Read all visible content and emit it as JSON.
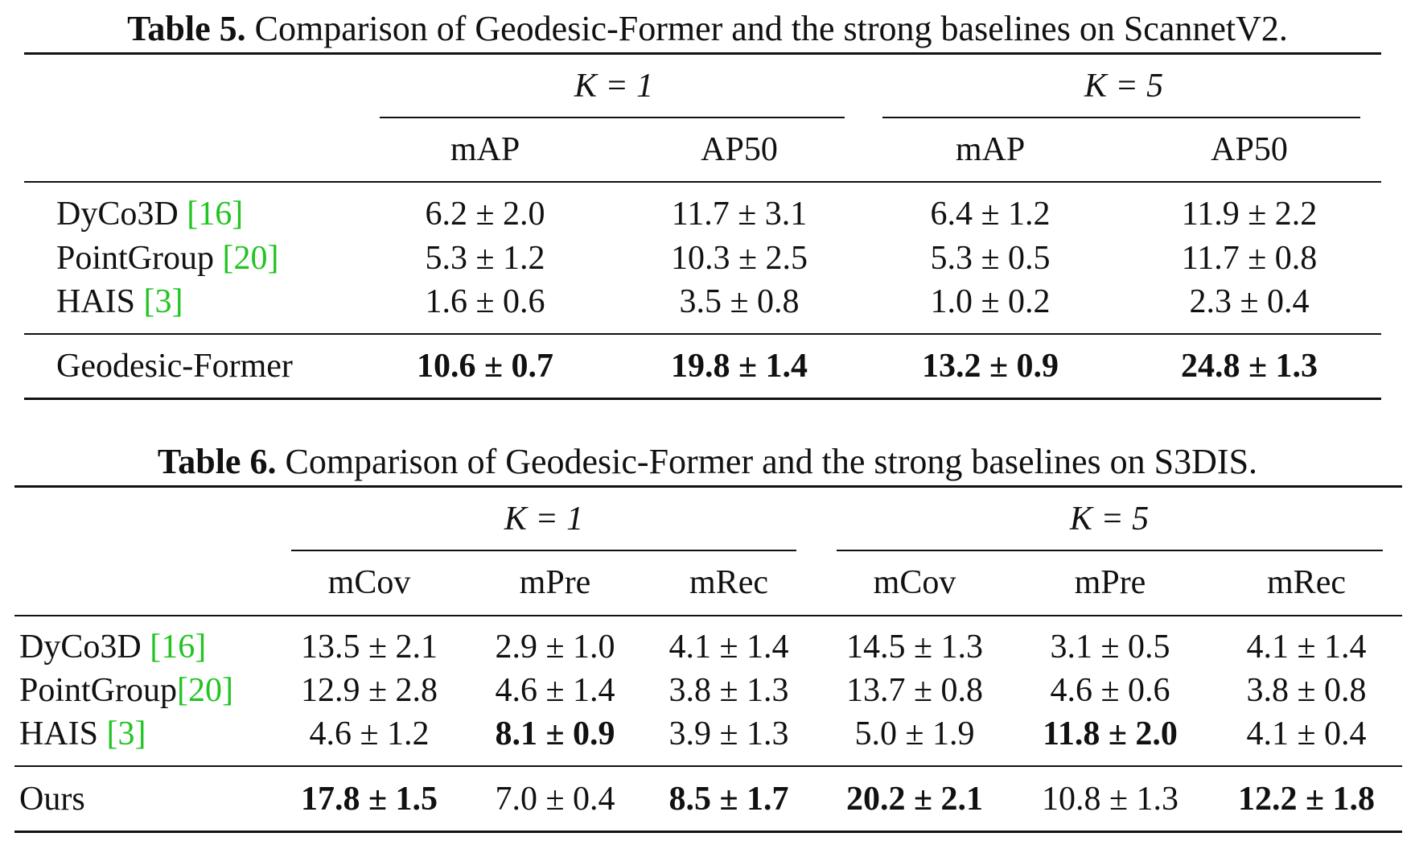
{
  "table5": {
    "label": "Table 5.",
    "caption": "Comparison of Geodesic-Former and the strong baselines on ScannetV2.",
    "group_headers": [
      "K = 1",
      "K = 5"
    ],
    "columns": [
      "mAP",
      "AP50",
      "mAP",
      "AP50"
    ],
    "rows": [
      {
        "method": "DyCo3D",
        "cite": "16",
        "values": [
          "6.2 ± 2.0",
          "11.7 ± 3.1",
          "6.4 ± 1.2",
          "11.9 ± 2.2"
        ]
      },
      {
        "method": "PointGroup",
        "cite": "20",
        "values": [
          "5.3 ± 1.2",
          "10.3 ± 2.5",
          "5.3 ± 0.5",
          "11.7 ± 0.8"
        ]
      },
      {
        "method": "HAIS",
        "cite": "3",
        "values": [
          "1.6 ± 0.6",
          "3.5 ± 0.8",
          "1.0 ± 0.2",
          "2.3 ± 0.4"
        ]
      }
    ],
    "ours": {
      "method": "Geodesic-Former",
      "values": [
        "10.6 ± 0.7",
        "19.8 ± 1.4",
        "13.2 ± 0.9",
        "24.8 ± 1.3"
      ]
    }
  },
  "table6": {
    "label": "Table 6.",
    "caption": "Comparison of Geodesic-Former and the strong baselines on S3DIS.",
    "group_headers": [
      "K = 1",
      "K = 5"
    ],
    "columns": [
      "mCov",
      "mPre",
      "mRec",
      "mCov",
      "mPre",
      "mRec"
    ],
    "rows": [
      {
        "method": "DyCo3D",
        "cite": "16",
        "values": [
          "13.5 ± 2.1",
          "2.9 ± 1.0",
          "4.1 ± 1.4",
          "14.5 ± 1.3",
          "3.1 ± 0.5",
          "4.1 ± 1.4"
        ]
      },
      {
        "method": "PointGroup",
        "cite": "20",
        "values": [
          "12.9 ± 2.8",
          "4.6 ± 1.4",
          "3.8 ± 1.3",
          "13.7 ± 0.8",
          "4.6 ± 0.6",
          "3.8 ± 0.8"
        ]
      },
      {
        "method": "HAIS",
        "cite": "3",
        "values": [
          "4.6 ± 1.2",
          "8.1 ± 0.9",
          "3.9 ± 1.3",
          "5.0 ± 1.9",
          "11.8 ± 2.0",
          "4.1 ± 0.4"
        ]
      }
    ],
    "ours": {
      "method": "Ours",
      "values": [
        "17.8 ± 1.5",
        "7.0 ± 0.4",
        "8.5 ± 1.7",
        "20.2 ± 2.1",
        "10.8 ± 1.3",
        "12.2 ± 1.8"
      ]
    }
  }
}
